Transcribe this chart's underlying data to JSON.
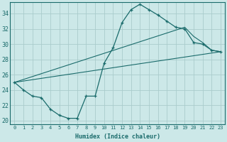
{
  "xlabel": "Humidex (Indice chaleur)",
  "ylabel": "",
  "xlim": [
    -0.5,
    23.5
  ],
  "ylim": [
    19.5,
    35.5
  ],
  "xticks": [
    0,
    1,
    2,
    3,
    4,
    5,
    6,
    7,
    8,
    9,
    10,
    11,
    12,
    13,
    14,
    15,
    16,
    17,
    18,
    19,
    20,
    21,
    22,
    23
  ],
  "yticks": [
    20,
    22,
    24,
    26,
    28,
    30,
    32,
    34
  ],
  "bg_color": "#cce8e8",
  "grid_color": "#aacccc",
  "line_color": "#1a6b6b",
  "line1_x": [
    0,
    1,
    2,
    3,
    4,
    5,
    6,
    7,
    8,
    9,
    10,
    11,
    12,
    13,
    14,
    15,
    16,
    17,
    18,
    19,
    20,
    21,
    22,
    23
  ],
  "line1_y": [
    25.0,
    24.0,
    23.2,
    23.0,
    21.5,
    20.7,
    20.3,
    20.3,
    23.2,
    23.2,
    27.5,
    29.5,
    32.8,
    34.5,
    35.2,
    34.5,
    33.8,
    33.0,
    32.2,
    32.0,
    30.2,
    30.0,
    29.2,
    29.0
  ],
  "line2_x": [
    0,
    23
  ],
  "line2_y": [
    25.0,
    29.0
  ],
  "line3_x": [
    0,
    19,
    20,
    21,
    22,
    23
  ],
  "line3_y": [
    25.0,
    32.2,
    31.0,
    30.2,
    29.2,
    29.0
  ]
}
